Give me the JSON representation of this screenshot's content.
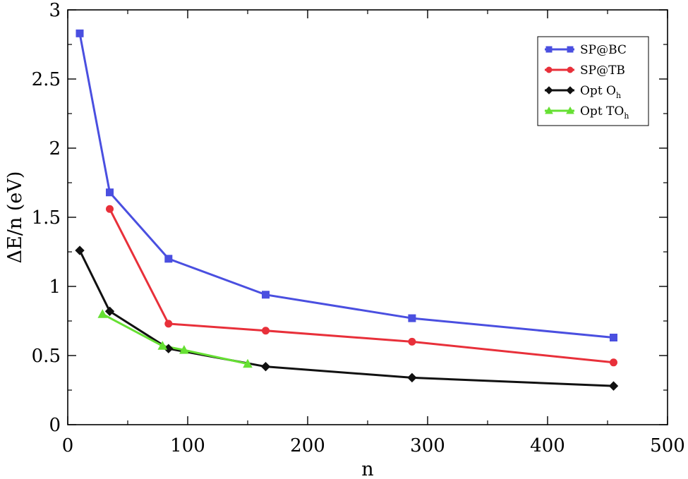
{
  "chart_data": {
    "type": "line",
    "xlabel": "n",
    "ylabel": "ΔE/n (eV)",
    "xlim": [
      0,
      500
    ],
    "ylim": [
      0,
      3
    ],
    "xticks": [
      0,
      100,
      200,
      300,
      400,
      500
    ],
    "yticks": [
      0,
      0.5,
      1,
      1.5,
      2,
      2.5,
      3
    ],
    "xtick_labels": [
      "0",
      "100",
      "200",
      "300",
      "400",
      "500"
    ],
    "ytick_labels": [
      "0",
      "0.5",
      "1",
      "1.5",
      "2",
      "2.5",
      "3"
    ],
    "grid": false,
    "legend_position": "top-right",
    "series": [
      {
        "name": "SP@BC",
        "label_main": "SP@BC",
        "label_sub": "",
        "color": "#4a4fe0",
        "marker": "square",
        "x": [
          10,
          35,
          84,
          165,
          287,
          455
        ],
        "y": [
          2.83,
          1.68,
          1.2,
          0.94,
          0.77,
          0.63
        ]
      },
      {
        "name": "SP@TB",
        "label_main": "SP@TB",
        "label_sub": "",
        "color": "#e8303a",
        "marker": "circle",
        "x": [
          35,
          84,
          165,
          287,
          455
        ],
        "y": [
          1.56,
          0.73,
          0.68,
          0.6,
          0.45
        ]
      },
      {
        "name": "Opt Oh",
        "label_main": "Opt O",
        "label_sub": "h",
        "color": "#111111",
        "marker": "diamond",
        "x": [
          10,
          35,
          84,
          165,
          287,
          455
        ],
        "y": [
          1.26,
          0.82,
          0.55,
          0.42,
          0.34,
          0.28
        ]
      },
      {
        "name": "Opt TOh",
        "label_main": "Opt TO",
        "label_sub": "h",
        "color": "#66e033",
        "marker": "triangle",
        "x": [
          29,
          79,
          97,
          150
        ],
        "y": [
          0.8,
          0.57,
          0.54,
          0.44
        ]
      }
    ]
  }
}
